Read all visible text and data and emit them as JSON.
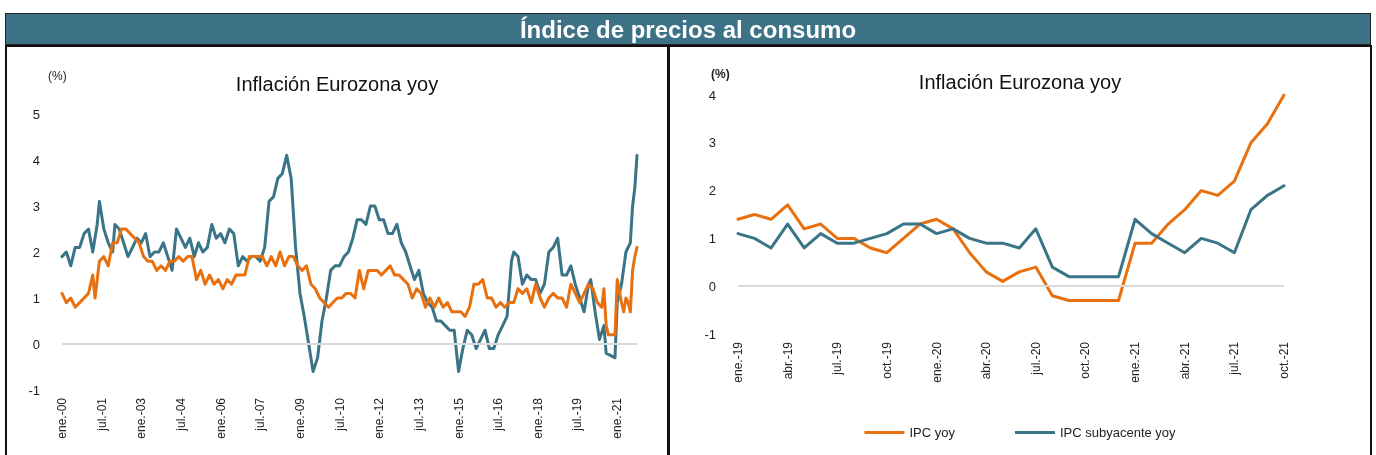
{
  "chart_data": [
    {
      "type": "line",
      "title": "Inflación Eurozona yoy",
      "ylabel": "(%)",
      "annotations": [
        "Índice de precios al consumo"
      ],
      "xlim": [
        "2000-01",
        "2021-10"
      ],
      "xticks": [
        {
          "value": "2000-01",
          "label": "ene.-00"
        },
        {
          "value": "2001-07",
          "label": "jul.-01"
        },
        {
          "value": "2003-01",
          "label": "ene.-03"
        },
        {
          "value": "2004-07",
          "label": "jul.-04"
        },
        {
          "value": "2006-01",
          "label": "ene.-06"
        },
        {
          "value": "2007-07",
          "label": "jul.-07"
        },
        {
          "value": "2009-01",
          "label": "ene.-09"
        },
        {
          "value": "2010-07",
          "label": "jul.-10"
        },
        {
          "value": "2012-01",
          "label": "ene.-12"
        },
        {
          "value": "2013-07",
          "label": "jul.-13"
        },
        {
          "value": "2015-01",
          "label": "ene.-15"
        },
        {
          "value": "2016-07",
          "label": "jul.-16"
        },
        {
          "value": "2018-01",
          "label": "ene.-18"
        },
        {
          "value": "2019-07",
          "label": "jul.-19"
        },
        {
          "value": "2021-01",
          "label": "ene.-21"
        }
      ],
      "ylim": [
        -1,
        5
      ],
      "yticks": [
        -1,
        0,
        1,
        2,
        3,
        4,
        5
      ],
      "grid": false,
      "legend": false,
      "marker": "none",
      "line_style": "solid",
      "ref_lines": [
        {
          "axis": "y",
          "value": 0,
          "color": "#d9d9d9"
        }
      ],
      "series": [
        {
          "color": "#3a7487",
          "x": [
            "2000-01",
            "2000-03",
            "2000-05",
            "2000-07",
            "2000-09",
            "2000-11",
            "2001-01",
            "2001-03",
            "2001-05",
            "2001-06",
            "2001-08",
            "2001-10",
            "2001-12",
            "2002-01",
            "2002-03",
            "2002-05",
            "2002-07",
            "2002-09",
            "2002-11",
            "2003-01",
            "2003-03",
            "2003-05",
            "2003-07",
            "2003-09",
            "2003-11",
            "2004-01",
            "2004-03",
            "2004-05",
            "2004-07",
            "2004-09",
            "2004-11",
            "2005-01",
            "2005-03",
            "2005-05",
            "2005-07",
            "2005-09",
            "2005-11",
            "2006-01",
            "2006-03",
            "2006-05",
            "2006-07",
            "2006-09",
            "2006-11",
            "2007-01",
            "2007-03",
            "2007-05",
            "2007-07",
            "2007-09",
            "2007-11",
            "2008-01",
            "2008-03",
            "2008-05",
            "2008-07",
            "2008-09",
            "2008-11",
            "2009-01",
            "2009-03",
            "2009-05",
            "2009-07",
            "2009-09",
            "2009-11",
            "2010-01",
            "2010-03",
            "2010-05",
            "2010-07",
            "2010-09",
            "2010-11",
            "2011-01",
            "2011-03",
            "2011-05",
            "2011-07",
            "2011-09",
            "2011-11",
            "2012-01",
            "2012-03",
            "2012-05",
            "2012-07",
            "2012-09",
            "2012-11",
            "2013-01",
            "2013-03",
            "2013-05",
            "2013-07",
            "2013-09",
            "2013-11",
            "2014-01",
            "2014-03",
            "2014-05",
            "2014-07",
            "2014-09",
            "2014-11",
            "2015-01",
            "2015-03",
            "2015-05",
            "2015-07",
            "2015-09",
            "2015-11",
            "2016-01",
            "2016-03",
            "2016-05",
            "2016-07",
            "2016-09",
            "2016-11",
            "2017-01",
            "2017-02",
            "2017-04",
            "2017-06",
            "2017-08",
            "2017-10",
            "2017-12",
            "2018-02",
            "2018-04",
            "2018-06",
            "2018-08",
            "2018-10",
            "2018-12",
            "2019-02",
            "2019-04",
            "2019-06",
            "2019-08",
            "2019-10",
            "2019-12",
            "2020-01",
            "2020-03",
            "2020-05",
            "2020-07",
            "2020-08",
            "2020-12",
            "2021-01",
            "2021-03",
            "2021-05",
            "2021-07",
            "2021-08",
            "2021-09",
            "2021-10"
          ],
          "values": [
            1.9,
            2.0,
            1.7,
            2.1,
            2.1,
            2.4,
            2.5,
            2.0,
            2.6,
            3.1,
            2.5,
            2.2,
            2.0,
            2.6,
            2.5,
            2.2,
            1.9,
            2.1,
            2.3,
            2.2,
            2.4,
            1.9,
            2.0,
            2.0,
            2.2,
            1.9,
            1.6,
            2.5,
            2.3,
            2.1,
            2.3,
            1.9,
            2.2,
            2.0,
            2.1,
            2.6,
            2.3,
            2.4,
            2.2,
            2.5,
            2.4,
            1.7,
            1.9,
            1.8,
            1.9,
            1.9,
            1.8,
            2.1,
            3.1,
            3.2,
            3.6,
            3.7,
            4.1,
            3.6,
            2.1,
            1.1,
            0.6,
            0.0,
            -0.6,
            -0.3,
            0.5,
            1.0,
            1.6,
            1.7,
            1.7,
            1.9,
            2.0,
            2.3,
            2.7,
            2.7,
            2.6,
            3.0,
            3.0,
            2.7,
            2.7,
            2.4,
            2.4,
            2.6,
            2.2,
            2.0,
            1.7,
            1.4,
            1.6,
            1.1,
            0.9,
            0.8,
            0.5,
            0.5,
            0.4,
            0.3,
            0.3,
            -0.6,
            -0.1,
            0.3,
            0.2,
            -0.1,
            0.1,
            0.3,
            -0.1,
            -0.1,
            0.2,
            0.4,
            0.6,
            1.8,
            2.0,
            1.9,
            1.3,
            1.5,
            1.4,
            1.4,
            1.1,
            1.3,
            2.0,
            2.1,
            2.3,
            1.5,
            1.5,
            1.7,
            1.3,
            1.0,
            0.7,
            1.3,
            1.4,
            0.7,
            0.1,
            0.4,
            -0.2,
            -0.3,
            0.9,
            1.3,
            2.0,
            2.2,
            3.0,
            3.4,
            4.1
          ]
        },
        {
          "color": "#e8700f",
          "x": [
            "2000-01",
            "2000-03",
            "2000-05",
            "2000-07",
            "2000-09",
            "2000-11",
            "2001-01",
            "2001-03",
            "2001-04",
            "2001-06",
            "2001-08",
            "2001-10",
            "2001-12",
            "2002-02",
            "2002-04",
            "2002-06",
            "2002-08",
            "2002-10",
            "2002-12",
            "2003-02",
            "2003-04",
            "2003-06",
            "2003-08",
            "2003-10",
            "2003-12",
            "2004-02",
            "2004-04",
            "2004-06",
            "2004-08",
            "2004-10",
            "2004-12",
            "2005-02",
            "2005-04",
            "2005-06",
            "2005-08",
            "2005-10",
            "2005-12",
            "2006-02",
            "2006-04",
            "2006-06",
            "2006-08",
            "2006-10",
            "2006-12",
            "2007-02",
            "2007-04",
            "2007-06",
            "2007-08",
            "2007-10",
            "2007-12",
            "2008-02",
            "2008-04",
            "2008-06",
            "2008-08",
            "2008-10",
            "2008-12",
            "2009-02",
            "2009-04",
            "2009-06",
            "2009-08",
            "2009-10",
            "2009-12",
            "2010-02",
            "2010-04",
            "2010-06",
            "2010-08",
            "2010-10",
            "2010-12",
            "2011-02",
            "2011-04",
            "2011-06",
            "2011-08",
            "2011-10",
            "2011-12",
            "2012-02",
            "2012-04",
            "2012-06",
            "2012-08",
            "2012-10",
            "2012-12",
            "2013-02",
            "2013-04",
            "2013-06",
            "2013-08",
            "2013-10",
            "2013-12",
            "2014-02",
            "2014-04",
            "2014-06",
            "2014-08",
            "2014-10",
            "2014-12",
            "2015-02",
            "2015-04",
            "2015-06",
            "2015-08",
            "2015-10",
            "2015-12",
            "2016-02",
            "2016-04",
            "2016-06",
            "2016-08",
            "2016-10",
            "2016-12",
            "2017-02",
            "2017-04",
            "2017-06",
            "2017-08",
            "2017-10",
            "2017-12",
            "2018-02",
            "2018-04",
            "2018-06",
            "2018-08",
            "2018-10",
            "2018-12",
            "2019-02",
            "2019-04",
            "2019-06",
            "2019-08",
            "2019-10",
            "2019-12",
            "2020-02",
            "2020-04",
            "2020-06",
            "2020-07",
            "2020-08",
            "2020-09",
            "2020-12",
            "2021-01",
            "2021-03",
            "2021-04",
            "2021-05",
            "2021-06",
            "2021-07",
            "2021-08",
            "2021-09",
            "2021-10"
          ],
          "values": [
            1.1,
            0.9,
            1.0,
            0.8,
            0.9,
            1.0,
            1.1,
            1.5,
            1.0,
            1.8,
            1.9,
            1.7,
            2.2,
            2.2,
            2.5,
            2.5,
            2.4,
            2.3,
            2.2,
            1.9,
            1.8,
            1.8,
            1.6,
            1.7,
            1.6,
            1.8,
            1.8,
            1.9,
            1.8,
            1.9,
            1.9,
            1.4,
            1.6,
            1.3,
            1.5,
            1.3,
            1.4,
            1.2,
            1.4,
            1.3,
            1.5,
            1.5,
            1.5,
            1.9,
            1.9,
            1.9,
            1.9,
            1.7,
            1.9,
            1.7,
            2.0,
            1.7,
            1.9,
            1.9,
            1.7,
            1.6,
            1.7,
            1.3,
            1.2,
            1.0,
            0.9,
            0.8,
            0.9,
            1.0,
            1.0,
            1.1,
            1.1,
            1.0,
            1.6,
            1.2,
            1.6,
            1.6,
            1.6,
            1.5,
            1.6,
            1.7,
            1.5,
            1.5,
            1.4,
            1.3,
            1.0,
            1.2,
            1.1,
            0.8,
            1.0,
            0.8,
            1.0,
            0.8,
            0.9,
            0.7,
            0.7,
            0.7,
            0.6,
            0.8,
            1.3,
            1.3,
            1.4,
            1.0,
            1.0,
            0.8,
            0.9,
            0.8,
            0.9,
            0.9,
            1.2,
            1.1,
            1.2,
            0.9,
            1.3,
            1.0,
            0.8,
            1.0,
            1.1,
            1.0,
            1.0,
            0.8,
            1.3,
            1.1,
            0.9,
            1.1,
            1.3,
            1.2,
            0.9,
            0.8,
            1.2,
            0.4,
            0.2,
            0.2,
            1.4,
            0.9,
            0.7,
            1.0,
            0.9,
            0.7,
            1.6,
            1.9,
            2.1
          ]
        }
      ]
    },
    {
      "type": "line",
      "title": "Inflación Eurozona yoy",
      "ylabel": "(%)",
      "categories": [
        "ene.-19",
        null,
        null,
        "abr.-19",
        null,
        null,
        "jul.-19",
        null,
        null,
        "oct.-19",
        null,
        null,
        "ene.-20",
        null,
        null,
        "abr.-20",
        null,
        null,
        "jul.-20",
        null,
        null,
        "oct.-20",
        null,
        null,
        "ene.-21",
        null,
        null,
        "abr.-21",
        null,
        null,
        "jul.-21",
        null,
        null,
        "oct.-21"
      ],
      "ylim": [
        -1,
        4
      ],
      "yticks": [
        -1,
        0,
        1,
        2,
        3,
        4
      ],
      "grid": false,
      "legend": "bottom",
      "marker": "none",
      "line_style": "solid",
      "ref_lines": [
        {
          "axis": "y",
          "value": 0,
          "color": "#d9d9d9"
        }
      ],
      "series": [
        {
          "name": "IPC yoy",
          "color": "#e8700f",
          "values": [
            1.4,
            1.5,
            1.4,
            1.7,
            1.2,
            1.3,
            1.0,
            1.0,
            0.8,
            0.7,
            1.0,
            1.3,
            1.4,
            1.2,
            0.7,
            0.3,
            0.1,
            0.3,
            0.4,
            -0.2,
            -0.3,
            -0.3,
            -0.3,
            -0.3,
            0.9,
            0.9,
            1.3,
            1.6,
            2.0,
            1.9,
            2.2,
            3.0,
            3.4,
            4.0
          ]
        },
        {
          "name": "IPC subyacente yoy",
          "color": "#3a7487",
          "values": [
            1.1,
            1.0,
            0.8,
            1.3,
            0.8,
            1.1,
            0.9,
            0.9,
            1.0,
            1.1,
            1.3,
            1.3,
            1.1,
            1.2,
            1.0,
            0.9,
            0.9,
            0.8,
            1.2,
            0.4,
            0.2,
            0.2,
            0.2,
            0.2,
            1.4,
            1.1,
            0.9,
            0.7,
            1.0,
            0.9,
            0.7,
            1.6,
            1.9,
            2.1
          ]
        }
      ]
    }
  ]
}
